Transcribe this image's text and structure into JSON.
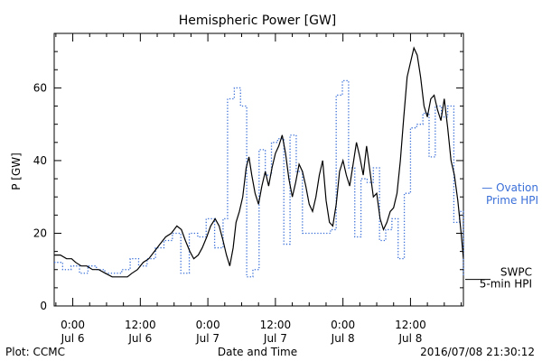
{
  "chart_data": {
    "type": "line",
    "title": "Hemispheric Power [GW]",
    "ylabel": "P [GW]",
    "xlabel": "Date and Time",
    "ylim": [
      0,
      75
    ],
    "yticks": [
      0,
      20,
      40,
      60
    ],
    "xlim_hours": [
      -3.3,
      69.4
    ],
    "xticks": [
      {
        "h": 0,
        "time": "0:00",
        "date": "Jul 6"
      },
      {
        "h": 12,
        "time": "12:00",
        "date": "Jul 6"
      },
      {
        "h": 24,
        "time": "0:00",
        "date": "Jul 7"
      },
      {
        "h": 36,
        "time": "12:00",
        "date": "Jul 7"
      },
      {
        "h": 48,
        "time": "0:00",
        "date": "Jul 8"
      },
      {
        "h": 60,
        "time": "12:00",
        "date": "Jul 8"
      }
    ],
    "series": [
      {
        "name": "SWPC 5-min HPI",
        "label_lines": [
          "SWPC",
          "5-min HPI"
        ],
        "color": "#000000",
        "style": "solid",
        "points": [
          [
            -3.3,
            14
          ],
          [
            -2.2,
            14
          ],
          [
            -1.1,
            13
          ],
          [
            -0.2,
            13
          ],
          [
            0.5,
            12
          ],
          [
            1.5,
            11
          ],
          [
            2.5,
            11
          ],
          [
            3.5,
            10
          ],
          [
            4.6,
            10
          ],
          [
            5.8,
            9
          ],
          [
            7,
            8
          ],
          [
            8.5,
            8
          ],
          [
            9.7,
            8
          ],
          [
            10.5,
            9
          ],
          [
            11.5,
            10
          ],
          [
            12.5,
            12
          ],
          [
            13.5,
            13
          ],
          [
            14.5,
            15
          ],
          [
            15.5,
            17
          ],
          [
            16.5,
            19
          ],
          [
            17.5,
            20
          ],
          [
            18.5,
            22
          ],
          [
            19.3,
            21
          ],
          [
            20,
            18
          ],
          [
            20.8,
            15
          ],
          [
            21.5,
            13
          ],
          [
            22.3,
            14
          ],
          [
            23,
            16
          ],
          [
            23.8,
            19
          ],
          [
            24.5,
            22
          ],
          [
            25.3,
            24
          ],
          [
            26,
            22
          ],
          [
            26.7,
            18
          ],
          [
            27.3,
            14
          ],
          [
            27.9,
            11
          ],
          [
            28.5,
            16
          ],
          [
            29,
            23
          ],
          [
            29.6,
            26
          ],
          [
            30.2,
            30
          ],
          [
            30.8,
            38
          ],
          [
            31.3,
            41
          ],
          [
            31.8,
            36
          ],
          [
            32.4,
            31
          ],
          [
            33,
            28
          ],
          [
            33.6,
            33
          ],
          [
            34.2,
            37
          ],
          [
            34.8,
            33
          ],
          [
            35.4,
            38
          ],
          [
            36,
            42
          ],
          [
            36.6,
            44
          ],
          [
            37.2,
            47
          ],
          [
            37.8,
            42
          ],
          [
            38.4,
            35
          ],
          [
            39,
            30
          ],
          [
            39.6,
            34
          ],
          [
            40.2,
            39
          ],
          [
            40.8,
            37
          ],
          [
            41.4,
            33
          ],
          [
            42,
            28
          ],
          [
            42.6,
            26
          ],
          [
            43.2,
            30
          ],
          [
            43.8,
            36
          ],
          [
            44.4,
            40
          ],
          [
            45,
            29
          ],
          [
            45.6,
            23
          ],
          [
            46.2,
            22
          ],
          [
            46.8,
            28
          ],
          [
            47.4,
            37
          ],
          [
            48,
            40
          ],
          [
            48.6,
            36
          ],
          [
            49.2,
            33
          ],
          [
            49.8,
            39
          ],
          [
            50.4,
            45
          ],
          [
            51,
            41
          ],
          [
            51.6,
            36
          ],
          [
            52.2,
            44
          ],
          [
            52.8,
            37
          ],
          [
            53.4,
            30
          ],
          [
            54,
            31
          ],
          [
            54.6,
            24
          ],
          [
            55.2,
            21
          ],
          [
            55.8,
            23
          ],
          [
            56.4,
            26
          ],
          [
            57,
            27
          ],
          [
            57.6,
            31
          ],
          [
            58.2,
            40
          ],
          [
            58.8,
            52
          ],
          [
            59.4,
            63
          ],
          [
            60,
            67
          ],
          [
            60.6,
            71
          ],
          [
            61.2,
            69
          ],
          [
            61.8,
            63
          ],
          [
            62.4,
            55
          ],
          [
            63,
            52
          ],
          [
            63.6,
            57
          ],
          [
            64.2,
            58
          ],
          [
            64.8,
            54
          ],
          [
            65.4,
            51
          ],
          [
            66,
            57
          ],
          [
            66.6,
            49
          ],
          [
            67.2,
            40
          ],
          [
            67.8,
            36
          ],
          [
            68.4,
            29
          ],
          [
            69,
            20
          ],
          [
            69.4,
            13
          ]
        ]
      },
      {
        "name": "Ovation Prime HPI",
        "label_lines": [
          "— Ovation",
          "Prime HPI"
        ],
        "color": "#3a6fd8",
        "style": "dotted-steps",
        "points": [
          [
            -3.3,
            12
          ],
          [
            -1.8,
            10
          ],
          [
            -0.3,
            11
          ],
          [
            1.2,
            9
          ],
          [
            2.7,
            11
          ],
          [
            4.2,
            10
          ],
          [
            5.7,
            9
          ],
          [
            7.2,
            9
          ],
          [
            8.7,
            10
          ],
          [
            10.2,
            13
          ],
          [
            11.7,
            11
          ],
          [
            13.2,
            13
          ],
          [
            14.7,
            16
          ],
          [
            16.2,
            18
          ],
          [
            17.7,
            20
          ],
          [
            19.2,
            9
          ],
          [
            20.7,
            20
          ],
          [
            22.2,
            19
          ],
          [
            23.7,
            24
          ],
          [
            25.2,
            16
          ],
          [
            26.7,
            24
          ],
          [
            27.5,
            57
          ],
          [
            28.7,
            60
          ],
          [
            29.8,
            55
          ],
          [
            30.9,
            8
          ],
          [
            32,
            10
          ],
          [
            33.1,
            43
          ],
          [
            34.2,
            36
          ],
          [
            35.3,
            45
          ],
          [
            36.4,
            46
          ],
          [
            37.5,
            17
          ],
          [
            38.6,
            47
          ],
          [
            39.7,
            37
          ],
          [
            40.8,
            20
          ],
          [
            42,
            20
          ],
          [
            43.5,
            20
          ],
          [
            44.8,
            20
          ],
          [
            45.8,
            21
          ],
          [
            46.8,
            58
          ],
          [
            47.9,
            62
          ],
          [
            49,
            38
          ],
          [
            50.1,
            19
          ],
          [
            51.2,
            35
          ],
          [
            52.3,
            34
          ],
          [
            53.4,
            38
          ],
          [
            54.5,
            18
          ],
          [
            55.6,
            21
          ],
          [
            56.7,
            24
          ],
          [
            57.8,
            13
          ],
          [
            58.9,
            31
          ],
          [
            60,
            49
          ],
          [
            61.1,
            50
          ],
          [
            62.2,
            53
          ],
          [
            63.3,
            41
          ],
          [
            64.4,
            55
          ],
          [
            65.5,
            52
          ],
          [
            66.6,
            55
          ],
          [
            67.7,
            23
          ],
          [
            68.7,
            26
          ],
          [
            69.4,
            8
          ]
        ]
      }
    ],
    "grid": false,
    "legend": "right, outside plot next to each series end"
  },
  "footer": {
    "left": "Plot: CCMC",
    "right": "2016/07/08 21:30:12"
  }
}
